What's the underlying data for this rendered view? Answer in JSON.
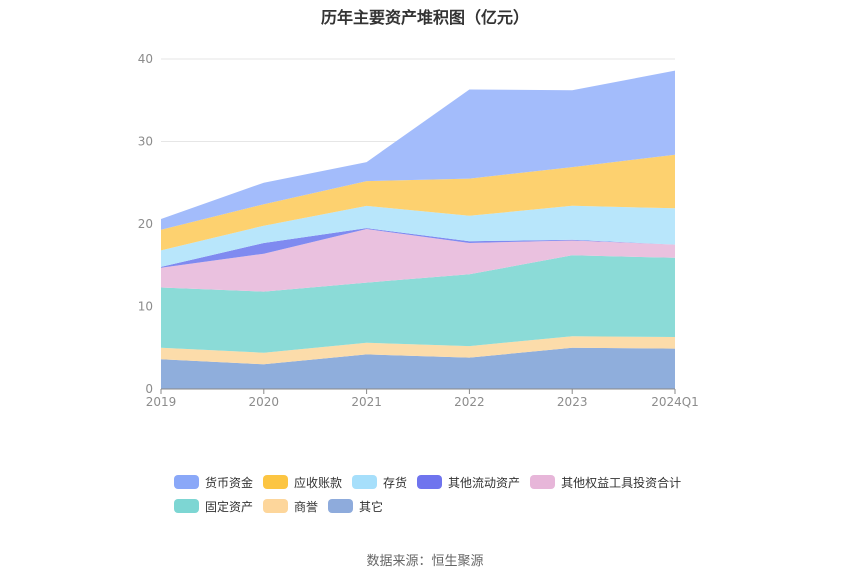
{
  "title": "历年主要资产堆积图（亿元）",
  "source": "数据来源：恒生聚源",
  "chart_data": {
    "type": "area",
    "stacked": true,
    "title": "历年主要资产堆积图（亿元）",
    "xlabel": "",
    "ylabel": "",
    "categories": [
      "2019",
      "2020",
      "2021",
      "2022",
      "2023",
      "2024Q1"
    ],
    "ylim": [
      0,
      40
    ],
    "yticks": [
      0,
      10,
      20,
      30,
      40
    ],
    "grid": true,
    "legend_position": "bottom",
    "series": [
      {
        "name": "其它",
        "color": "#8faedc",
        "values": [
          3.6,
          3.0,
          4.2,
          3.8,
          5.0,
          4.9
        ]
      },
      {
        "name": "商誉",
        "color": "#fcdcaa",
        "values": [
          1.4,
          1.4,
          1.4,
          1.4,
          1.4,
          1.4
        ]
      },
      {
        "name": "固定资产",
        "color": "#8bdbd7",
        "values": [
          7.3,
          7.4,
          7.3,
          8.7,
          9.8,
          9.6
        ]
      },
      {
        "name": "其他权益工具投资合计",
        "color": "#eac1df",
        "values": [
          2.4,
          4.6,
          6.5,
          3.8,
          1.8,
          1.6
        ]
      },
      {
        "name": "其他流动资产",
        "color": "#7f8af0",
        "values": [
          0.1,
          1.3,
          0.1,
          0.2,
          0.1,
          0.0
        ]
      },
      {
        "name": "存货",
        "color": "#b8e6fb",
        "values": [
          2.0,
          2.1,
          2.7,
          3.1,
          4.1,
          4.4
        ]
      },
      {
        "name": "应收账款",
        "color": "#fdd16f",
        "values": [
          2.5,
          2.6,
          3.0,
          4.5,
          4.7,
          6.5
        ]
      },
      {
        "name": "货币资金",
        "color": "#a3bcfb",
        "values": [
          1.3,
          2.6,
          2.3,
          10.8,
          9.3,
          10.2
        ]
      }
    ]
  },
  "legend": {
    "rows": [
      [
        {
          "label": "货币资金",
          "color": "#8aa8f8"
        },
        {
          "label": "应收账款",
          "color": "#fcc542"
        },
        {
          "label": "存货",
          "color": "#a6dffb"
        },
        {
          "label": "其他流动资产",
          "color": "#6f74ee"
        },
        {
          "label": "其他权益工具投资合计",
          "color": "#e7b6d9"
        }
      ],
      [
        {
          "label": "固定资产",
          "color": "#7dd6d3"
        },
        {
          "label": "商誉",
          "color": "#fdd69b"
        },
        {
          "label": "其它",
          "color": "#8eabdc"
        }
      ]
    ]
  }
}
